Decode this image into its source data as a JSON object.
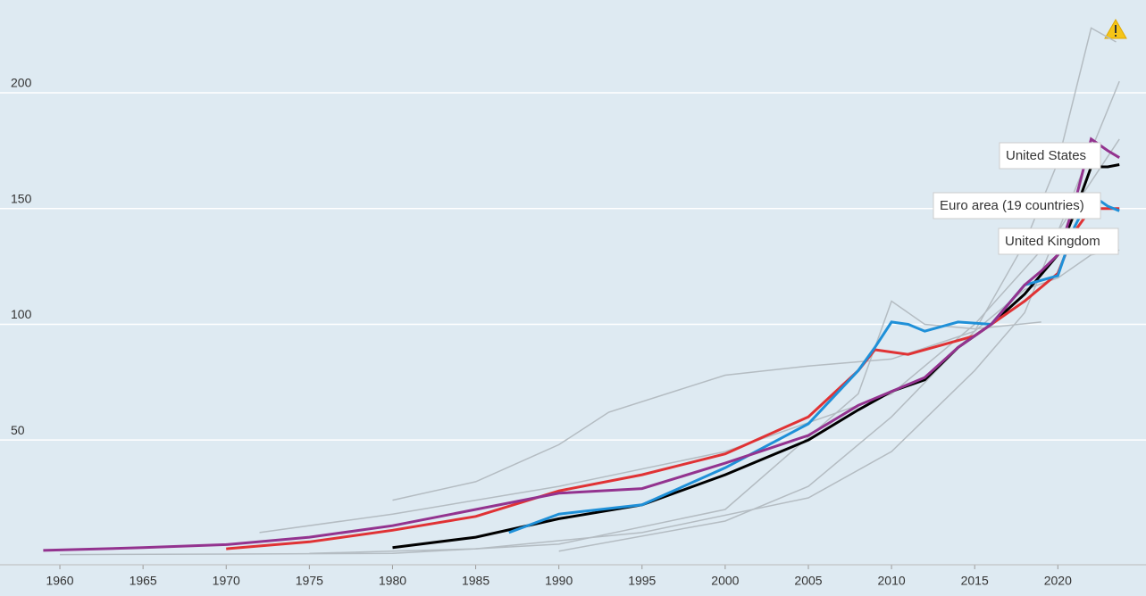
{
  "chart_data": {
    "type": "line",
    "xlim": [
      1956.4,
      2025.3
    ],
    "ylim": [
      -3.9,
      240.1
    ],
    "xticks": [
      1960,
      1965,
      1970,
      1975,
      1980,
      1985,
      1990,
      1995,
      2000,
      2005,
      2010,
      2015,
      2020
    ],
    "yticks": [
      50,
      100,
      150,
      200
    ],
    "grid": true,
    "series": [
      {
        "color": "#b4bcc2",
        "x": [
          1980,
          1985,
          1990,
          1993,
          2000,
          2005,
          2010,
          2015,
          2018,
          2020,
          2022,
          2023.7
        ],
        "values": [
          24,
          32,
          48,
          62,
          78,
          82,
          85,
          97,
          115,
          120,
          130,
          132
        ]
      },
      {
        "color": "#b4bcc2",
        "x": [
          1990,
          2000,
          2005,
          2010,
          2015,
          2018,
          2020,
          2022,
          2023.5
        ],
        "values": [
          2,
          15,
          30,
          60,
          97,
          135,
          170,
          228,
          222
        ]
      },
      {
        "color": "#b4bcc2",
        "x": [
          1972,
          1980,
          1990,
          2000,
          2010,
          2015,
          2020,
          2023.7
        ],
        "values": [
          10,
          18,
          30,
          45,
          70,
          100,
          140,
          205
        ]
      },
      {
        "color": "#b4bcc2",
        "x": [
          1975,
          1985,
          1995,
          2005,
          2010,
          2015,
          2018,
          2020,
          2023.7
        ],
        "values": [
          1,
          3,
          10,
          25,
          45,
          80,
          105,
          140,
          180
        ]
      },
      {
        "color": "#b4bcc2",
        "x": [
          1960,
          1980,
          1990,
          2000,
          2008,
          2010,
          2012,
          2015,
          2019
        ],
        "values": [
          0.5,
          1,
          5,
          20,
          70,
          110,
          100,
          98,
          101
        ]
      },
      {
        "color": "#000000",
        "x": [
          1980,
          1985,
          1990,
          1995,
          2000,
          2005,
          2008,
          2010,
          2012,
          2014,
          2016,
          2018,
          2020,
          2021,
          2022,
          2023,
          2023.7
        ],
        "values": [
          3.5,
          8,
          16,
          22,
          35,
          50,
          63,
          71,
          76,
          90,
          100,
          113,
          130,
          148,
          168,
          168,
          169
        ]
      },
      {
        "name": "United Kingdom",
        "color": "#e03234",
        "x": [
          1970,
          1975,
          1980,
          1985,
          1990,
          1995,
          2000,
          2005,
          2008,
          2009,
          2011,
          2013,
          2015,
          2016,
          2018,
          2020,
          2021,
          2022,
          2023.7
        ],
        "values": [
          3,
          6,
          11,
          17,
          28,
          35,
          44,
          60,
          80,
          89,
          87,
          91,
          95,
          100,
          110,
          122,
          140,
          150,
          150
        ]
      },
      {
        "name": "Euro area (19 countries)",
        "color": "#1f90d8",
        "x": [
          1987,
          1990,
          1995,
          2000,
          2005,
          2008,
          2009,
          2010,
          2011,
          2012,
          2014,
          2016,
          2018,
          2020,
          2021,
          2022,
          2023,
          2023.7
        ],
        "values": [
          10,
          18,
          22,
          38,
          57,
          80,
          90,
          101,
          100,
          97,
          101,
          100,
          117,
          121,
          142,
          156,
          151,
          149
        ]
      },
      {
        "name": "United States",
        "color": "#93338f",
        "x": [
          1959,
          1965,
          1970,
          1975,
          1980,
          1985,
          1990,
          1995,
          2000,
          2005,
          2008,
          2010,
          2012,
          2014,
          2016,
          2018,
          2019,
          2020,
          2021,
          2022,
          2023,
          2023.7
        ],
        "values": [
          2.3,
          3.5,
          4.8,
          8,
          13,
          20,
          27,
          29,
          40,
          52,
          65,
          71,
          77,
          90,
          100,
          117,
          123,
          130,
          152,
          180,
          175,
          172
        ]
      }
    ]
  }
}
